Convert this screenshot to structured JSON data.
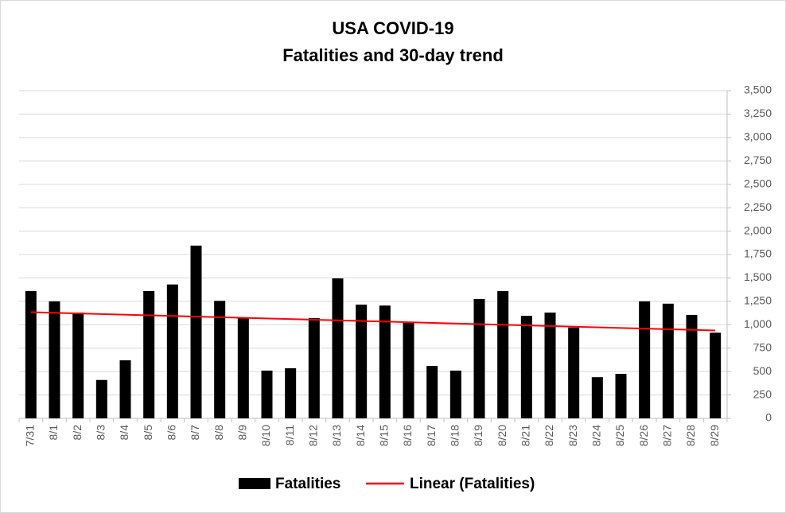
{
  "chart_data": {
    "type": "bar",
    "title": "USA COVID-19",
    "subtitle": "Fatalities and 30-day trend",
    "categories": [
      "7/31",
      "8/1",
      "8/2",
      "8/3",
      "8/4",
      "8/5",
      "8/6",
      "8/7",
      "8/8",
      "8/9",
      "8/10",
      "8/11",
      "8/12",
      "8/13",
      "8/14",
      "8/15",
      "8/16",
      "8/17",
      "8/18",
      "8/19",
      "8/20",
      "8/21",
      "8/22",
      "8/23",
      "8/24",
      "8/25",
      "8/26",
      "8/27",
      "8/28",
      "8/29"
    ],
    "series": [
      {
        "name": "Fatalities",
        "color": "#000000",
        "values": [
          1360,
          1250,
          1130,
          410,
          620,
          1360,
          1430,
          1845,
          1255,
          1070,
          510,
          535,
          1070,
          1495,
          1215,
          1205,
          1030,
          560,
          510,
          1275,
          1360,
          1095,
          1130,
          970,
          440,
          475,
          1250,
          1225,
          1105,
          915
        ]
      }
    ],
    "trendline": {
      "name": "Linear (Fatalities)",
      "color": "#ff0000",
      "series": 0
    },
    "ylim": [
      0,
      3500
    ],
    "yticks": [
      0,
      {
        "value": 250,
        "label": "250"
      },
      {
        "value": 500,
        "label": "500"
      },
      {
        "value": 750,
        "label": "750"
      },
      {
        "value": 1000,
        "label": "1,000"
      },
      {
        "value": 1250,
        "label": "1,250"
      },
      {
        "value": 1500,
        "label": "1,500"
      },
      {
        "value": 1750,
        "label": "1,750"
      },
      {
        "value": 2000,
        "label": "2,000"
      },
      {
        "value": 2250,
        "label": "2,250"
      },
      {
        "value": 2500,
        "label": "2,500"
      },
      {
        "value": 2750,
        "label": "2,750"
      },
      {
        "value": 3000,
        "label": "3,000"
      },
      {
        "value": 3250,
        "label": "3,250"
      },
      {
        "value": 3500,
        "label": "3,500"
      }
    ],
    "yaxis_side": "right",
    "grid": true,
    "legend": "bottom"
  }
}
